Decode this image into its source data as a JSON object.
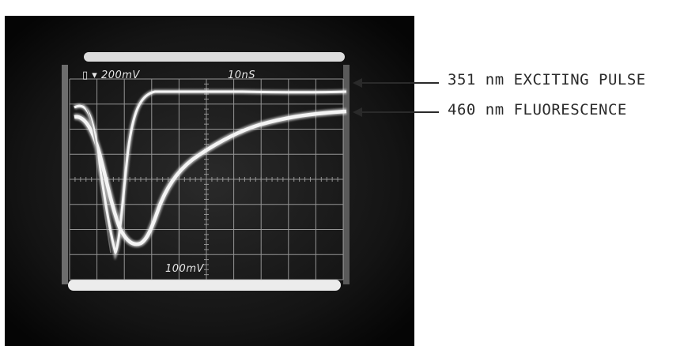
{
  "oscilloscope": {
    "ch1_label": "▯ ▾ 200mV",
    "timebase_label": "10nS",
    "ch2_label": "100mV"
  },
  "annotations": [
    {
      "text": "351 nm EXCITING PULSE"
    },
    {
      "text": "460 nm FLUORESCENCE"
    }
  ],
  "colors": {
    "screen_background": "#0d0d0d",
    "trace": "#f4f4f4",
    "graticule": "#bdbdbd",
    "annotation_text": "#2a2a2a"
  }
}
